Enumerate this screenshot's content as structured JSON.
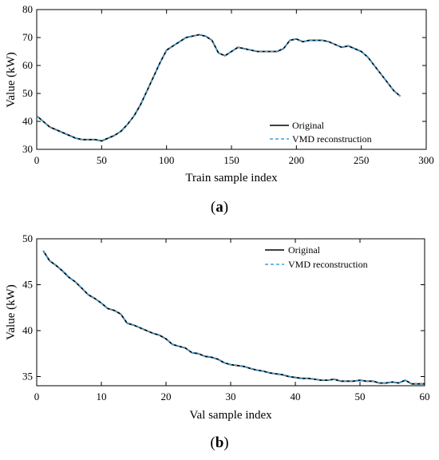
{
  "chart_data": [
    {
      "type": "line",
      "caption_letter": "a",
      "xlabel": "Train sample index",
      "ylabel": "Value (kW)",
      "xlim": [
        0,
        300
      ],
      "ylim": [
        30,
        80
      ],
      "xticks": [
        0,
        50,
        100,
        150,
        200,
        250,
        300
      ],
      "yticks": [
        30,
        40,
        50,
        60,
        70,
        80
      ],
      "grid": false,
      "legend_position": "bottom-right",
      "series": [
        {
          "name": "Original",
          "style": "solid",
          "color": "#000000",
          "x": [
            0,
            5,
            10,
            15,
            20,
            25,
            30,
            35,
            40,
            45,
            50,
            55,
            60,
            65,
            70,
            75,
            80,
            85,
            90,
            95,
            100,
            105,
            110,
            115,
            120,
            125,
            130,
            135,
            140,
            145,
            150,
            155,
            160,
            165,
            170,
            175,
            180,
            185,
            190,
            195,
            200,
            205,
            210,
            215,
            220,
            225,
            230,
            235,
            240,
            245,
            250,
            255,
            260,
            265,
            270,
            275,
            280
          ],
          "y": [
            42,
            40,
            38,
            37,
            36,
            35,
            34,
            33.5,
            33.5,
            33.5,
            33,
            34,
            35,
            36.5,
            39,
            42,
            46,
            51,
            56,
            61,
            65.5,
            67,
            68.5,
            70,
            70.5,
            71,
            70.5,
            69,
            64.5,
            63.5,
            65,
            66.5,
            66,
            65.5,
            65,
            65,
            65,
            65,
            66,
            69,
            69.5,
            68.5,
            69,
            69,
            69,
            68.5,
            67.5,
            66.5,
            67,
            66,
            65,
            63,
            60,
            57,
            54,
            51,
            49
          ]
        },
        {
          "name": "VMD reconstruction",
          "style": "dashed",
          "color": "#3ba4e0",
          "x": [
            0,
            5,
            10,
            15,
            20,
            25,
            30,
            35,
            40,
            45,
            50,
            55,
            60,
            65,
            70,
            75,
            80,
            85,
            90,
            95,
            100,
            105,
            110,
            115,
            120,
            125,
            130,
            135,
            140,
            145,
            150,
            155,
            160,
            165,
            170,
            175,
            180,
            185,
            190,
            195,
            200,
            205,
            210,
            215,
            220,
            225,
            230,
            235,
            240,
            245,
            250,
            255,
            260,
            265,
            270,
            275,
            280
          ],
          "y": [
            42,
            40,
            38,
            37,
            36,
            35,
            34,
            33.5,
            33.5,
            33.5,
            33,
            34,
            35,
            36.5,
            39,
            42,
            46,
            51,
            56,
            61,
            65.5,
            67,
            68.5,
            70,
            70.5,
            71,
            70.5,
            69,
            64.5,
            63.5,
            65,
            66.5,
            66,
            65.5,
            65,
            65,
            65,
            65,
            66,
            69,
            69.5,
            68.5,
            69,
            69,
            69,
            68.5,
            67.5,
            66.5,
            67,
            66,
            65,
            63,
            60,
            57,
            54,
            51,
            49
          ]
        }
      ]
    },
    {
      "type": "line",
      "caption_letter": "b",
      "xlabel": "Val sample index",
      "ylabel": "Value (kW)",
      "xlim": [
        0,
        60
      ],
      "ylim": [
        34,
        50
      ],
      "xticks": [
        0,
        10,
        20,
        30,
        40,
        50,
        60
      ],
      "yticks": [
        35,
        40,
        45,
        50
      ],
      "grid": false,
      "legend_position": "top-right",
      "series": [
        {
          "name": "Original",
          "style": "solid",
          "color": "#000000",
          "x": [
            1,
            2,
            3,
            4,
            5,
            6,
            7,
            8,
            9,
            10,
            11,
            12,
            13,
            14,
            15,
            16,
            17,
            18,
            19,
            20,
            21,
            22,
            23,
            24,
            25,
            26,
            27,
            28,
            29,
            30,
            31,
            32,
            33,
            34,
            35,
            36,
            37,
            38,
            39,
            40,
            41,
            42,
            43,
            44,
            45,
            46,
            47,
            48,
            49,
            50,
            51,
            52,
            53,
            54,
            55,
            56,
            57,
            58,
            59,
            60
          ],
          "y": [
            48.7,
            47.6,
            47.1,
            46.5,
            45.8,
            45.3,
            44.6,
            43.9,
            43.5,
            43.0,
            42.4,
            42.2,
            41.8,
            40.8,
            40.6,
            40.3,
            40.0,
            39.7,
            39.5,
            39.1,
            38.5,
            38.3,
            38.1,
            37.6,
            37.5,
            37.2,
            37.1,
            36.9,
            36.5,
            36.3,
            36.2,
            36.1,
            35.9,
            35.7,
            35.6,
            35.4,
            35.3,
            35.2,
            35.0,
            34.9,
            34.8,
            34.8,
            34.7,
            34.6,
            34.6,
            34.7,
            34.5,
            34.5,
            34.5,
            34.6,
            34.5,
            34.5,
            34.3,
            34.3,
            34.4,
            34.3,
            34.6,
            34.2,
            34.2,
            34.2
          ]
        },
        {
          "name": "VMD reconstruction",
          "style": "dashed",
          "color": "#3ba4e0",
          "x": [
            1,
            2,
            3,
            4,
            5,
            6,
            7,
            8,
            9,
            10,
            11,
            12,
            13,
            14,
            15,
            16,
            17,
            18,
            19,
            20,
            21,
            22,
            23,
            24,
            25,
            26,
            27,
            28,
            29,
            30,
            31,
            32,
            33,
            34,
            35,
            36,
            37,
            38,
            39,
            40,
            41,
            42,
            43,
            44,
            45,
            46,
            47,
            48,
            49,
            50,
            51,
            52,
            53,
            54,
            55,
            56,
            57,
            58,
            59,
            60
          ],
          "y": [
            48.7,
            47.6,
            47.1,
            46.5,
            45.8,
            45.3,
            44.6,
            43.9,
            43.5,
            43.0,
            42.4,
            42.2,
            41.8,
            40.8,
            40.6,
            40.3,
            40.0,
            39.7,
            39.5,
            39.1,
            38.5,
            38.3,
            38.1,
            37.6,
            37.5,
            37.2,
            37.1,
            36.9,
            36.5,
            36.3,
            36.2,
            36.1,
            35.9,
            35.7,
            35.6,
            35.4,
            35.3,
            35.2,
            35.0,
            34.9,
            34.8,
            34.8,
            34.7,
            34.6,
            34.6,
            34.7,
            34.5,
            34.5,
            34.5,
            34.6,
            34.5,
            34.5,
            34.3,
            34.3,
            34.4,
            34.3,
            34.6,
            34.2,
            34.2,
            34.2
          ]
        }
      ]
    }
  ]
}
